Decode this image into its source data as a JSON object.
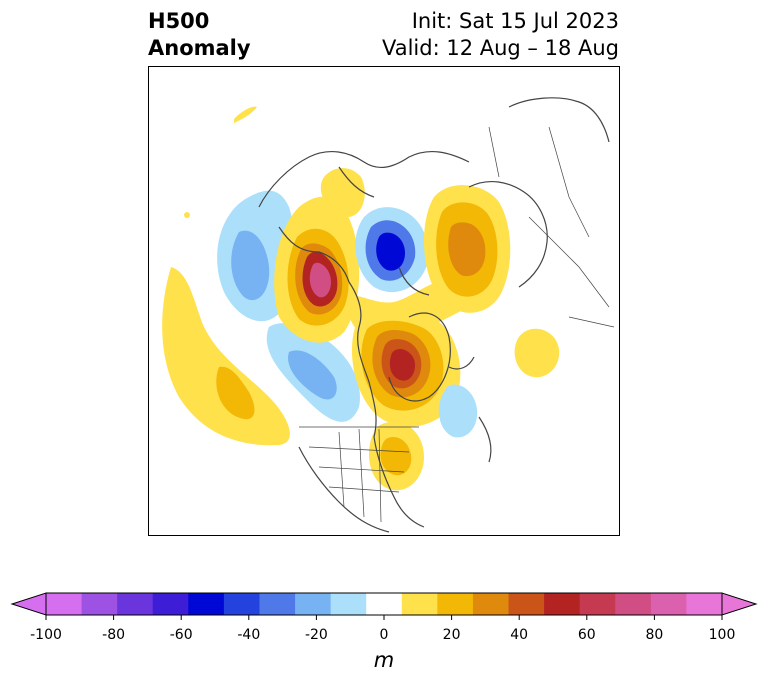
{
  "title": {
    "line1": "H500",
    "line2": "Anomaly"
  },
  "subtitle": {
    "line1": "Init: Sat 15 Jul 2023",
    "line2": "Valid: 12 Aug – 18 Aug"
  },
  "colorbar": {
    "unit": "m",
    "ticks": [
      "-100",
      "-80",
      "-60",
      "-40",
      "-20",
      "0",
      "20",
      "40",
      "60",
      "80",
      "100"
    ],
    "levels": [
      -100,
      -90,
      -80,
      -70,
      -60,
      -50,
      -40,
      -30,
      -20,
      -10,
      10,
      20,
      30,
      40,
      50,
      60,
      70,
      80,
      90,
      100
    ],
    "colors": [
      "#d56ff0",
      "#9e52e3",
      "#6b35de",
      "#3d1ed6",
      "#0008d6",
      "#2342de",
      "#4f79e8",
      "#77b2f2",
      "#ace0fa",
      "#ffffff",
      "#ffe14c",
      "#f2b805",
      "#df8a0c",
      "#cb5519",
      "#b32322",
      "#c53a50",
      "#d04e83",
      "#db60ad",
      "#e776d8"
    ],
    "under_color": "#d56ff0",
    "over_color": "#e776d8"
  }
}
